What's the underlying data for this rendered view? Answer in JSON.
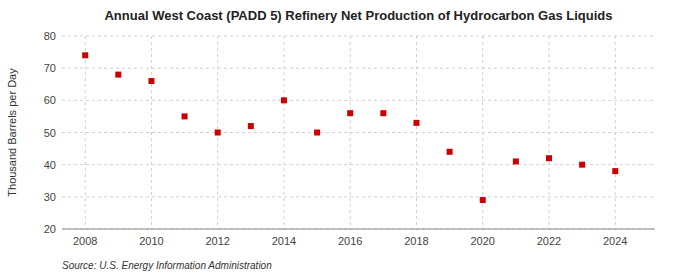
{
  "chart_data": {
    "type": "scatter",
    "title": "Annual West Coast (PADD 5) Refinery Net Production of Hydrocarbon Gas Liquids",
    "ylabel": "Thousand Barrels per Day",
    "annotations": [
      "Source: U.S. Energy Information Administration"
    ],
    "x": [
      2008,
      2009,
      2010,
      2011,
      2012,
      2013,
      2014,
      2015,
      2016,
      2017,
      2018,
      2019,
      2020,
      2021,
      2022,
      2023,
      2024
    ],
    "values": [
      74,
      68,
      66,
      55,
      50,
      52,
      60,
      50,
      56,
      56,
      53,
      44,
      29,
      41,
      42,
      40,
      38
    ],
    "color": "#CC0000",
    "marker": "square",
    "grid": true,
    "xlim": [
      2007.3,
      2025.2
    ],
    "xticks": [
      2008,
      2010,
      2012,
      2014,
      2016,
      2018,
      2020,
      2022,
      2024
    ],
    "ylim": [
      20,
      80
    ],
    "yticks": [
      20,
      30,
      40,
      50,
      60,
      70,
      80
    ]
  }
}
